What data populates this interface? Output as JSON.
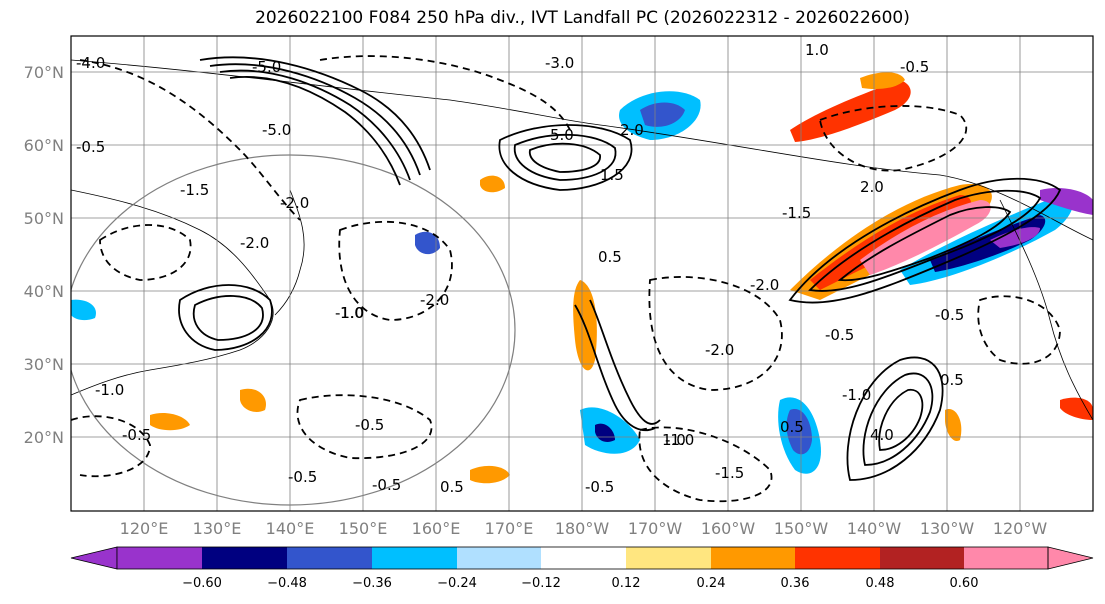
{
  "title": "2026022100 F084 250 hPa div., IVT Landfall PC (2026022312 - 2026022600)",
  "map": {
    "lat_ticks": [
      "20°N",
      "30°N",
      "40°N",
      "50°N",
      "60°N",
      "70°N"
    ],
    "lon_ticks": [
      "120°E",
      "130°E",
      "140°E",
      "150°E",
      "160°E",
      "170°E",
      "180°W",
      "170°W",
      "160°W",
      "150°W",
      "140°W",
      "130°W",
      "120°W"
    ],
    "lat_range": [
      10,
      75
    ],
    "lon_range": [
      110,
      250
    ],
    "contour_labels": [
      "-4.0",
      "-5.0",
      "-0.5",
      "-1.5",
      "-1.0",
      "-0.5",
      "-2.0",
      "-5.0",
      "-2.0",
      "-3.0",
      "1.0",
      "-0.5",
      "-1.0",
      "-2.0",
      "5.0",
      "2.0",
      "-1.5",
      "1.5",
      "2.0",
      "0.5",
      "-2.0",
      "-0.5",
      "-1.0",
      "-0.5",
      "-2.0",
      "1.0",
      "-0.5",
      "0.5",
      "-0.5",
      "0.5",
      "-0.5",
      "-1.5",
      "1.0",
      "-0.5",
      "-1.0",
      "4.0",
      "0.5"
    ]
  },
  "colorbar": {
    "labels": [
      "−0.60",
      "−0.48",
      "−0.36",
      "−0.24",
      "−0.12",
      "0.12",
      "0.24",
      "0.36",
      "0.48",
      "0.60"
    ],
    "colors": [
      "#9933cc",
      "#000080",
      "#3355cc",
      "#00bfff",
      "#b0e0ff",
      "#ffffff",
      "#ffe680",
      "#ff9900",
      "#ff3300",
      "#b22222",
      "#ff88aa",
      "#ff88aa"
    ]
  }
}
